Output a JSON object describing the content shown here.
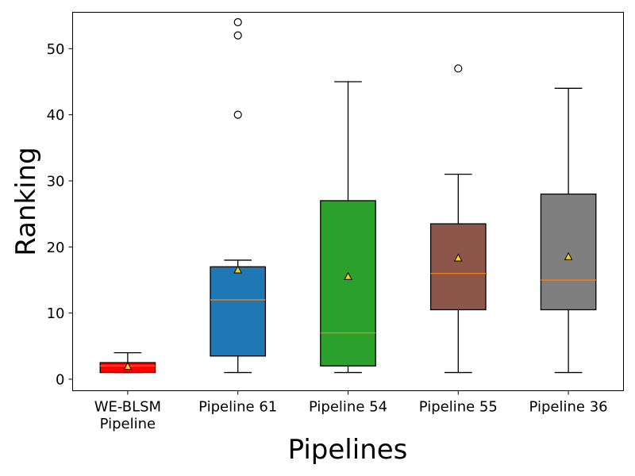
{
  "chart_data": {
    "type": "box",
    "title": "",
    "xlabel": "Pipelines",
    "ylabel": "Ranking",
    "ylim": [
      -1.75,
      55.5
    ],
    "yticks": [
      0,
      10,
      20,
      30,
      40,
      50
    ],
    "grid": false,
    "legend": "none",
    "median_color": "#ff7f0e",
    "mean_marker_color": "#ffd11a",
    "categories": [
      {
        "label_lines": [
          "WE-BLSM",
          "Pipeline"
        ],
        "color": "#ff0000",
        "whisker_low": 1,
        "q1": 1,
        "median": 2,
        "q3": 2.5,
        "whisker_high": 4,
        "mean": 1.9,
        "outliers": []
      },
      {
        "label_lines": [
          "Pipeline 61"
        ],
        "color": "#1f77b4",
        "whisker_low": 1,
        "q1": 3.5,
        "median": 12,
        "q3": 17,
        "whisker_high": 18,
        "mean": 16.5,
        "outliers": [
          40,
          52,
          54
        ]
      },
      {
        "label_lines": [
          "Pipeline 54"
        ],
        "color": "#2ca02c",
        "whisker_low": 1,
        "q1": 2,
        "median": 7,
        "q3": 27,
        "whisker_high": 45,
        "mean": 15.5,
        "outliers": []
      },
      {
        "label_lines": [
          "Pipeline 55"
        ],
        "color": "#8c564b",
        "whisker_low": 1,
        "q1": 10.5,
        "median": 16,
        "q3": 23.5,
        "whisker_high": 31,
        "mean": 18.3,
        "outliers": [
          47
        ]
      },
      {
        "label_lines": [
          "Pipeline 36"
        ],
        "color": "#7f7f7f",
        "whisker_low": 1,
        "q1": 10.5,
        "median": 15,
        "q3": 28,
        "whisker_high": 44,
        "mean": 18.5,
        "outliers": []
      }
    ]
  }
}
